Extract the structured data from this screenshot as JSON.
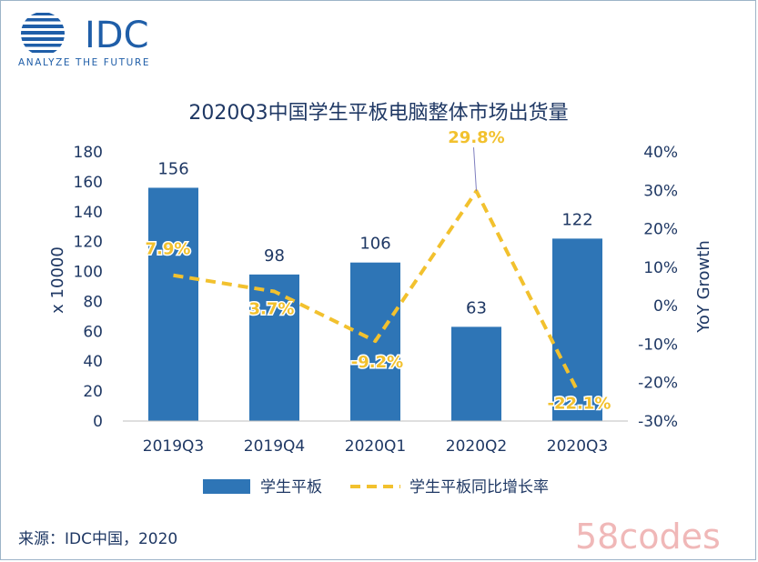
{
  "brand": {
    "name": "IDC",
    "tagline": "ANALYZE THE FUTURE",
    "color": "#1f5ea8",
    "logo_icon": "globe-icon"
  },
  "source_note": "来源：IDC中国，2020",
  "watermark": "58codes",
  "chart_data": {
    "type": "bar",
    "title": "2020Q3中国学生平板电脑整体市场出货量",
    "categories": [
      "2019Q3",
      "2019Q4",
      "2020Q1",
      "2020Q2",
      "2020Q3"
    ],
    "series": [
      {
        "name": "学生平板",
        "type": "bar",
        "axis": "left",
        "color": "#2e75b6",
        "values": [
          156,
          98,
          106,
          63,
          122
        ],
        "labels": [
          "156",
          "98",
          "106",
          "63",
          "122"
        ]
      },
      {
        "name": "学生平板同比增长率",
        "type": "line",
        "style": "dashed",
        "axis": "right",
        "color": "#f2c12e",
        "values": [
          7.9,
          3.7,
          -9.2,
          29.8,
          -22.1
        ],
        "labels": [
          "7.9%",
          "3.7%",
          "-9.2%",
          "29.8%",
          "-22.1%"
        ]
      }
    ],
    "ylabel": "x 10000",
    "ylim": [
      0,
      180
    ],
    "yticks": [
      "0",
      "20",
      "40",
      "60",
      "80",
      "100",
      "120",
      "140",
      "160",
      "180"
    ],
    "y2label": "YoY Growth",
    "y2lim": [
      -30,
      40
    ],
    "y2ticks": [
      "-30%",
      "-20%",
      "-10%",
      "0%",
      "10%",
      "20%",
      "30%",
      "40%"
    ],
    "grid": false,
    "legend": "bottom"
  }
}
